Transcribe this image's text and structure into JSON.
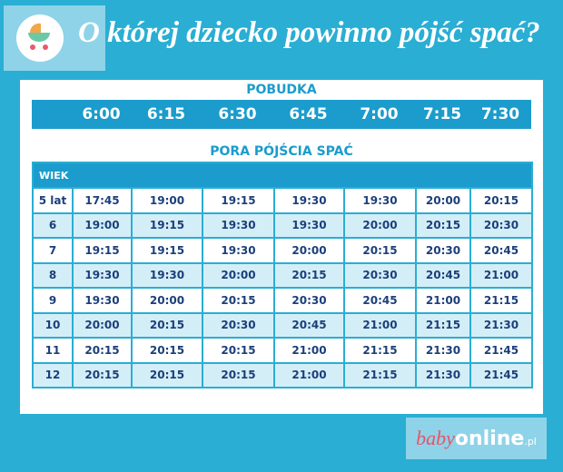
{
  "header": {
    "title": "O której dziecko powinno pójść spać?"
  },
  "wake": {
    "label": "POBUDKA",
    "times": [
      "6:00",
      "6:15",
      "6:30",
      "6:45",
      "7:00",
      "7:15",
      "7:30"
    ]
  },
  "table": {
    "title": "PORA PÓJŚCIA SPAĆ",
    "age_header": "WIEK",
    "rows": [
      [
        "5 lat",
        "17:45",
        "19:00",
        "19:15",
        "19:30",
        "19:30",
        "20:00",
        "20:15"
      ],
      [
        "6",
        "19:00",
        "19:15",
        "19:30",
        "19:30",
        "20:00",
        "20:15",
        "20:30"
      ],
      [
        "7",
        "19:15",
        "19:15",
        "19:30",
        "20:00",
        "20:15",
        "20:30",
        "20:45"
      ],
      [
        "8",
        "19:30",
        "19:30",
        "20:00",
        "20:15",
        "20:30",
        "20:45",
        "21:00"
      ],
      [
        "9",
        "19:30",
        "20:00",
        "20:15",
        "20:30",
        "20:45",
        "21:00",
        "21:15"
      ],
      [
        "10",
        "20:00",
        "20:15",
        "20:30",
        "20:45",
        "21:00",
        "21:15",
        "21:30"
      ],
      [
        "11",
        "20:15",
        "20:15",
        "20:15",
        "21:00",
        "21:15",
        "21:30",
        "21:45"
      ],
      [
        "12",
        "20:15",
        "20:15",
        "20:15",
        "21:00",
        "21:15",
        "21:30",
        "21:45"
      ]
    ]
  },
  "logo": {
    "baby": "baby",
    "online": "online",
    "domain": ".pl"
  }
}
